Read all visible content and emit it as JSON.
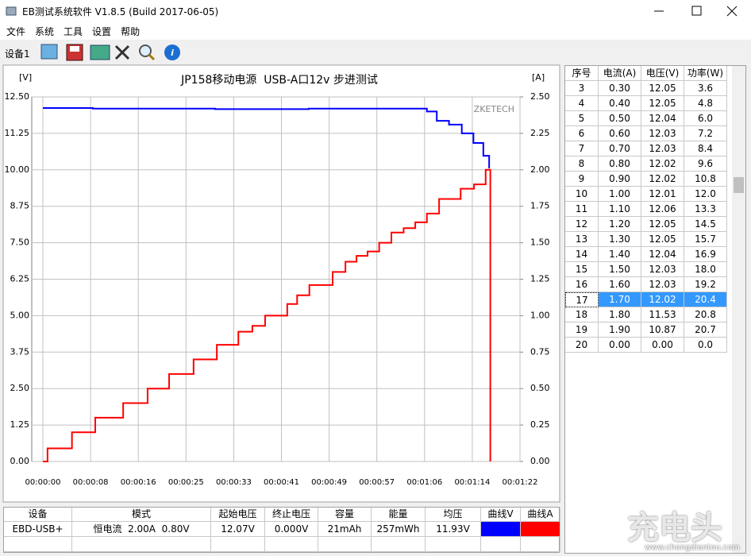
{
  "window": {
    "title": "EB测试系统软件 V1.8.5 (Build 2017-06-05)"
  },
  "menu": [
    "文件",
    "系统",
    "工具",
    "设置",
    "帮助"
  ],
  "toolbar": {
    "tab": "设备1"
  },
  "chart_data": {
    "type": "line",
    "title": "JP158移动电源  USB-A口12v 步进测试",
    "y_label": "[V]",
    "y2_label": "[A]",
    "watermark": "ZKETECH",
    "grid": true,
    "step": "post",
    "xlim": [
      0,
      82
    ],
    "xticks": [
      {
        "value": 0,
        "label": "00:00:00"
      },
      {
        "value": 8.2,
        "label": "00:00:08"
      },
      {
        "value": 16.4,
        "label": "00:00:16"
      },
      {
        "value": 24.6,
        "label": "00:00:25"
      },
      {
        "value": 32.8,
        "label": "00:00:33"
      },
      {
        "value": 41,
        "label": "00:00:41"
      },
      {
        "value": 49.2,
        "label": "00:00:49"
      },
      {
        "value": 57.4,
        "label": "00:00:57"
      },
      {
        "value": 65.6,
        "label": "00:01:06"
      },
      {
        "value": 73.8,
        "label": "00:01:14"
      },
      {
        "value": 82,
        "label": "00:01:22"
      }
    ],
    "ylim": [
      0,
      12.5
    ],
    "yticks": [
      {
        "value": 0,
        "label": "0.00"
      },
      1.25,
      {
        "value": 2.5,
        "label": "2.50"
      },
      3.75,
      {
        "value": 5,
        "label": "5.00"
      },
      6.25,
      {
        "value": 7.5,
        "label": "7.50"
      },
      8.75,
      {
        "value": 10,
        "label": "10.00"
      },
      11.25,
      {
        "value": 12.5,
        "label": "12.50"
      }
    ],
    "y2lim": [
      0,
      2.5
    ],
    "y2ticks": [
      {
        "value": 0,
        "label": "0.00"
      },
      0.25,
      {
        "value": 0.5,
        "label": "0.50"
      },
      0.75,
      {
        "value": 1,
        "label": "1.00"
      },
      1.25,
      {
        "value": 1.5,
        "label": "1.50"
      },
      1.75,
      {
        "value": 2,
        "label": "2.00"
      },
      2.25,
      {
        "value": 2.5,
        "label": "2.50"
      }
    ],
    "series": [
      {
        "name": "曲线V",
        "color": "#0000ff",
        "x": [
          0,
          8.6,
          29.6,
          45.7,
          66.0,
          67.7,
          69.8,
          72.0,
          74.0,
          75.7,
          76.7
        ],
        "values": [
          12.12,
          12.1,
          12.08,
          12.1,
          12.0,
          11.68,
          11.55,
          11.25,
          10.92,
          10.48,
          10.05
        ]
      },
      {
        "name": "曲线A",
        "color": "#ff0000",
        "axis": "y2",
        "x": [
          0,
          0.8,
          5.0,
          9.0,
          13.8,
          18.0,
          21.7,
          25.9,
          29.9,
          33.6,
          36.0,
          38.2,
          42.0,
          43.7,
          45.8,
          49.8,
          52.0,
          53.9,
          55.8,
          57.8,
          59.9,
          62.0,
          64.0,
          66.0,
          68.1,
          71.8,
          74.1,
          76.1,
          76.9
        ],
        "values": [
          0,
          0.09,
          0.2,
          0.3,
          0.4,
          0.5,
          0.6,
          0.7,
          0.8,
          0.89,
          0.93,
          1.0,
          1.08,
          1.14,
          1.21,
          1.3,
          1.37,
          1.41,
          1.44,
          1.5,
          1.57,
          1.6,
          1.64,
          1.7,
          1.8,
          1.87,
          1.9,
          2.0,
          0
        ]
      }
    ]
  },
  "table": {
    "headers": [
      "序号",
      "电流(A)",
      "电压(V)",
      "功率(W)"
    ],
    "selected_row": 14,
    "rows": [
      [
        "3",
        "0.30",
        "12.05",
        "3.6"
      ],
      [
        "4",
        "0.40",
        "12.05",
        "4.8"
      ],
      [
        "5",
        "0.50",
        "12.04",
        "6.0"
      ],
      [
        "6",
        "0.60",
        "12.03",
        "7.2"
      ],
      [
        "7",
        "0.70",
        "12.03",
        "8.4"
      ],
      [
        "8",
        "0.80",
        "12.02",
        "9.6"
      ],
      [
        "9",
        "0.90",
        "12.02",
        "10.8"
      ],
      [
        "10",
        "1.00",
        "12.01",
        "12.0"
      ],
      [
        "11",
        "1.10",
        "12.06",
        "13.3"
      ],
      [
        "12",
        "1.20",
        "12.05",
        "14.5"
      ],
      [
        "13",
        "1.30",
        "12.05",
        "15.7"
      ],
      [
        "14",
        "1.40",
        "12.04",
        "16.9"
      ],
      [
        "15",
        "1.50",
        "12.03",
        "18.0"
      ],
      [
        "16",
        "1.60",
        "12.03",
        "19.2"
      ],
      [
        "17",
        "1.70",
        "12.02",
        "20.4"
      ],
      [
        "18",
        "1.80",
        "11.53",
        "20.8"
      ],
      [
        "19",
        "1.90",
        "10.87",
        "20.7"
      ],
      [
        "20",
        "0.00",
        "0.00",
        "0.0"
      ]
    ]
  },
  "summary": {
    "headers": [
      "设备",
      "模式",
      "起始电压",
      "终止电压",
      "容量",
      "能量",
      "均压"
    ],
    "row": [
      "EBD-USB+",
      "恒电流  2.00A  0.80V",
      "12.07V",
      "0.000V",
      "21mAh",
      "257mWh",
      "11.93V"
    ]
  },
  "watermark": {
    "logo": "充电头",
    "url": "www.chongdiantou.com"
  }
}
